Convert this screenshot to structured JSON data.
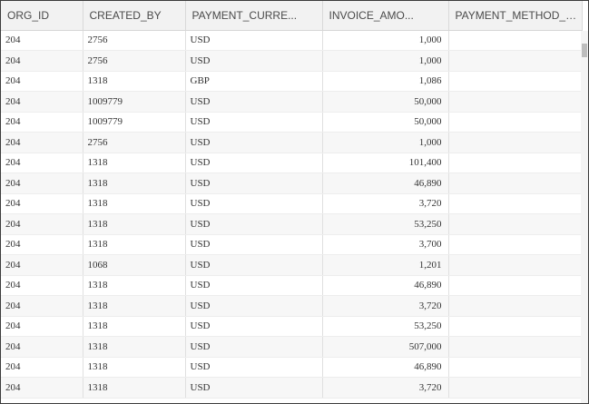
{
  "columns": [
    "ORG_ID",
    "CREATED_BY",
    "PAYMENT_CURRE...",
    "INVOICE_AMO...",
    "PAYMENT_METHOD_LO..."
  ],
  "rows": [
    [
      "204",
      "2756",
      "USD",
      "1,000",
      ""
    ],
    [
      "204",
      "2756",
      "USD",
      "1,000",
      ""
    ],
    [
      "204",
      "1318",
      "GBP",
      "1,086",
      ""
    ],
    [
      "204",
      "1009779",
      "USD",
      "50,000",
      ""
    ],
    [
      "204",
      "1009779",
      "USD",
      "50,000",
      ""
    ],
    [
      "204",
      "2756",
      "USD",
      "1,000",
      ""
    ],
    [
      "204",
      "1318",
      "USD",
      "101,400",
      ""
    ],
    [
      "204",
      "1318",
      "USD",
      "46,890",
      ""
    ],
    [
      "204",
      "1318",
      "USD",
      "3,720",
      ""
    ],
    [
      "204",
      "1318",
      "USD",
      "53,250",
      ""
    ],
    [
      "204",
      "1318",
      "USD",
      "3,700",
      ""
    ],
    [
      "204",
      "1068",
      "USD",
      "1,201",
      ""
    ],
    [
      "204",
      "1318",
      "USD",
      "46,890",
      ""
    ],
    [
      "204",
      "1318",
      "USD",
      "3,720",
      ""
    ],
    [
      "204",
      "1318",
      "USD",
      "53,250",
      ""
    ],
    [
      "204",
      "1318",
      "USD",
      "507,000",
      ""
    ],
    [
      "204",
      "1318",
      "USD",
      "46,890",
      ""
    ],
    [
      "204",
      "1318",
      "USD",
      "3,720",
      ""
    ]
  ]
}
